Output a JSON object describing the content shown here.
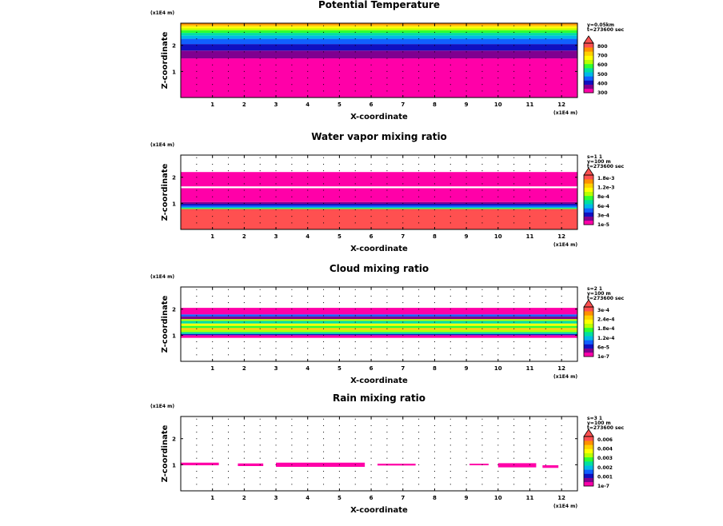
{
  "chart_data": [
    {
      "type": "heatmap",
      "title": "Potential Temperature",
      "xlabel": "X-coordinate",
      "ylabel": "Z-coordinate",
      "x_unit": "(x1E4 m)",
      "z_unit": "(x1E4 m)",
      "xlim": [
        0,
        12.5
      ],
      "zlim": [
        0,
        2.85
      ],
      "xticks": [
        "1",
        "2",
        "3",
        "4",
        "5",
        "6",
        "7",
        "8",
        "9",
        "10",
        "11",
        "12"
      ],
      "zticks": [
        "1",
        "2"
      ],
      "info": [
        "y=0.05km",
        "t=273600 sec"
      ],
      "colorbar_labels": [
        "800",
        "700",
        "600",
        "500",
        "400",
        "300"
      ],
      "colors": [
        "#ff00a8",
        "#800090",
        "#1010c0",
        "#1060ff",
        "#00b8e8",
        "#00e0a0",
        "#30ff30",
        "#b8ff00",
        "#ffff00",
        "#ffd000",
        "#ff9000",
        "#ff5050"
      ],
      "bands": [
        {
          "z0": 0.0,
          "z1": 1.5,
          "level": 0
        },
        {
          "z0": 1.5,
          "z1": 1.8,
          "level": 1
        },
        {
          "z0": 1.8,
          "z1": 2.05,
          "level": 2
        },
        {
          "z0": 2.05,
          "z1": 2.25,
          "level": 3
        },
        {
          "z0": 2.25,
          "z1": 2.38,
          "level": 4
        },
        {
          "z0": 2.38,
          "z1": 2.48,
          "level": 5
        },
        {
          "z0": 2.48,
          "z1": 2.58,
          "level": 6
        },
        {
          "z0": 2.58,
          "z1": 2.65,
          "level": 7
        },
        {
          "z0": 2.65,
          "z1": 2.72,
          "level": 8
        },
        {
          "z0": 2.72,
          "z1": 2.78,
          "level": 9
        },
        {
          "z0": 2.78,
          "z1": 2.85,
          "level": 10
        }
      ]
    },
    {
      "type": "heatmap",
      "title": "Water vapor mixing ratio",
      "xlabel": "X-coordinate",
      "ylabel": "Z-coordinate",
      "x_unit": "(x1E4 m)",
      "z_unit": "(x1E4 m)",
      "xlim": [
        0,
        12.5
      ],
      "zlim": [
        0,
        2.85
      ],
      "xticks": [
        "1",
        "2",
        "3",
        "4",
        "5",
        "6",
        "7",
        "8",
        "9",
        "10",
        "11",
        "12"
      ],
      "zticks": [
        "1",
        "2"
      ],
      "info": [
        "s=1 1",
        "y=100 m",
        "t=273600 sec"
      ],
      "colorbar_labels": [
        "1.8e-3",
        "1.2e-3",
        "8e-4",
        "6e-4",
        "3e-4",
        "1e-5"
      ],
      "colors": [
        "#ff00a8",
        "#800090",
        "#1010c0",
        "#1060ff",
        "#00b8e8",
        "#00e0a0",
        "#30ff30",
        "#b8ff00",
        "#ffff00",
        "#ffd000",
        "#ff9000",
        "#ff5050"
      ],
      "bands": [
        {
          "z0": 0.0,
          "z1": 0.78,
          "level": 11
        },
        {
          "z0": 0.78,
          "z1": 0.82,
          "level": 6
        },
        {
          "z0": 0.82,
          "z1": 0.86,
          "level": 4
        },
        {
          "z0": 0.86,
          "z1": 0.92,
          "level": 3
        },
        {
          "z0": 0.92,
          "z1": 0.98,
          "level": 2
        },
        {
          "z0": 0.98,
          "z1": 1.05,
          "level": 1
        },
        {
          "z0": 1.05,
          "z1": 1.58,
          "level": 0
        },
        {
          "z0": 1.65,
          "z1": 2.2,
          "level": 0
        }
      ]
    },
    {
      "type": "heatmap",
      "title": "Cloud mixing ratio",
      "xlabel": "X-coordinate",
      "ylabel": "Z-coordinate",
      "x_unit": "(x1E4 m)",
      "z_unit": "(x1E4 m)",
      "xlim": [
        0,
        12.5
      ],
      "zlim": [
        0,
        2.85
      ],
      "xticks": [
        "1",
        "2",
        "3",
        "4",
        "5",
        "6",
        "7",
        "8",
        "9",
        "10",
        "11",
        "12"
      ],
      "zticks": [
        "1",
        "2"
      ],
      "info": [
        "s=2 1",
        "y=100 m",
        "t=273600 sec"
      ],
      "colorbar_labels": [
        "3e-4",
        "2.4e-4",
        "1.8e-4",
        "1.2e-4",
        "6e-5",
        "1e-7"
      ],
      "colors": [
        "#ff00a8",
        "#800090",
        "#1010c0",
        "#1060ff",
        "#00b8e8",
        "#00e0a0",
        "#30ff30",
        "#b8ff00",
        "#ffff00",
        "#ffd000",
        "#ff9000",
        "#ff5050"
      ],
      "bands": [
        {
          "z0": 0.9,
          "z1": 1.0,
          "level": 0
        },
        {
          "z0": 1.0,
          "z1": 1.05,
          "level": 2
        },
        {
          "z0": 1.05,
          "z1": 1.12,
          "level": 5
        },
        {
          "z0": 1.12,
          "z1": 1.2,
          "level": 7
        },
        {
          "z0": 1.2,
          "z1": 1.28,
          "level": 9
        },
        {
          "z0": 1.28,
          "z1": 1.36,
          "level": 6
        },
        {
          "z0": 1.36,
          "z1": 1.45,
          "level": 8
        },
        {
          "z0": 1.45,
          "z1": 1.55,
          "level": 5
        },
        {
          "z0": 1.55,
          "z1": 1.62,
          "level": 7
        },
        {
          "z0": 1.62,
          "z1": 1.72,
          "level": 1
        },
        {
          "z0": 1.72,
          "z1": 1.8,
          "level": 3
        },
        {
          "z0": 1.8,
          "z1": 2.05,
          "level": 0
        }
      ]
    },
    {
      "type": "heatmap",
      "title": "Rain mixing ratio",
      "xlabel": "X-coordinate",
      "ylabel": "Z-coordinate",
      "x_unit": "(x1E4 m)",
      "z_unit": "(x1E4 m)",
      "xlim": [
        0,
        12.5
      ],
      "zlim": [
        0,
        2.85
      ],
      "xticks": [
        "1",
        "2",
        "3",
        "4",
        "5",
        "6",
        "7",
        "8",
        "9",
        "10",
        "11",
        "12"
      ],
      "zticks": [
        "1",
        "2"
      ],
      "info": [
        "s=3 1",
        "y=100 m",
        "t=273600 sec"
      ],
      "colorbar_labels": [
        "0.006",
        "0.004",
        "0.003",
        "0.002",
        "0.001",
        "1e-7"
      ],
      "colors": [
        "#ff00a8",
        "#800090",
        "#1010c0",
        "#1060ff",
        "#00b8e8",
        "#00e0a0",
        "#30ff30",
        "#b8ff00",
        "#ffff00",
        "#ffd000",
        "#ff9000",
        "#ff5050"
      ],
      "bands": [
        {
          "x0": 0.0,
          "x1": 1.2,
          "z0": 0.98,
          "z1": 1.08,
          "level": 0
        },
        {
          "x0": 1.8,
          "x1": 2.6,
          "z0": 0.95,
          "z1": 1.05,
          "level": 0
        },
        {
          "x0": 3.0,
          "x1": 5.8,
          "z0": 0.92,
          "z1": 1.08,
          "level": 0
        },
        {
          "x0": 6.2,
          "x1": 7.4,
          "z0": 0.97,
          "z1": 1.04,
          "level": 0
        },
        {
          "x0": 9.1,
          "x1": 9.7,
          "z0": 0.98,
          "z1": 1.04,
          "level": 0
        },
        {
          "x0": 10.0,
          "x1": 11.2,
          "z0": 0.9,
          "z1": 1.06,
          "level": 0
        },
        {
          "x0": 11.4,
          "x1": 11.9,
          "z0": 0.88,
          "z1": 0.98,
          "level": 0
        }
      ]
    }
  ]
}
